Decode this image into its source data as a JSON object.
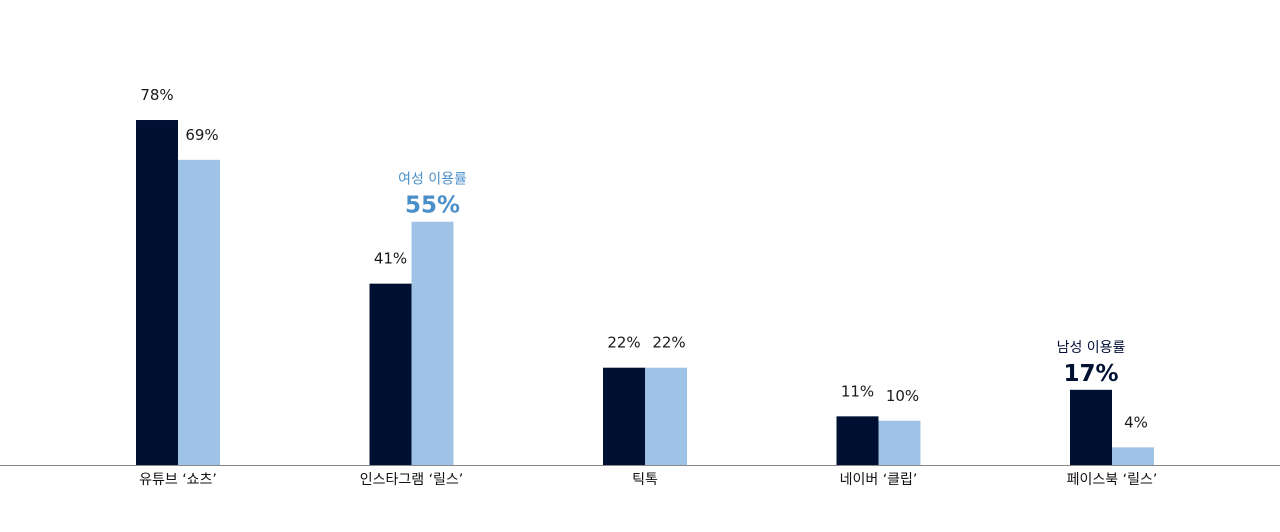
{
  "chart_data": {
    "type": "bar",
    "categories": [
      "유튜브 ‘쇼츠’",
      "인스타그램 ‘릴스’",
      "틱톡",
      "네이버 ‘클립’",
      "페이스북 ‘릴스’"
    ],
    "series": [
      {
        "values": [
          78,
          41,
          22,
          11,
          17
        ],
        "labels": [
          "78%",
          "41%",
          "22%",
          "11%",
          "17%"
        ]
      },
      {
        "values": [
          69,
          55,
          22,
          10,
          4
        ],
        "labels": [
          "69%",
          "55%",
          "22%",
          "10%",
          "4%"
        ]
      }
    ],
    "ylim": [
      0,
      100
    ],
    "grid": false,
    "annotations": [
      {
        "category_index": 1,
        "series_index": 1,
        "caption": "여성 이용률",
        "value_text": "55%"
      },
      {
        "category_index": 4,
        "series_index": 0,
        "caption": "남성 이용률",
        "value_text": "17%"
      }
    ],
    "colors": {
      "series0": "#001033",
      "series1": "#9fc3e6",
      "annotation_female": "#4a8fc9",
      "annotation_male": "#001033",
      "axis": "#888888",
      "label": "#1a1a1a"
    }
  }
}
